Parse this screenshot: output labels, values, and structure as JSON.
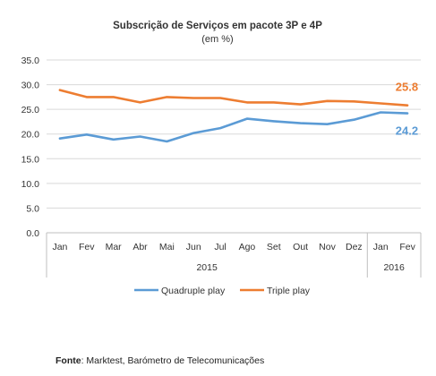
{
  "chart_data": {
    "type": "line",
    "title": "Subscrição de Serviços em pacote 3P e 4P",
    "subtitle": "(em %)",
    "categories": [
      "Jan",
      "Fev",
      "Mar",
      "Abr",
      "Mai",
      "Jun",
      "Jul",
      "Ago",
      "Set",
      "Out",
      "Nov",
      "Dez",
      "Jan",
      "Fev"
    ],
    "category_groups": [
      {
        "label": "2015",
        "count": 12
      },
      {
        "label": "2016",
        "count": 2
      }
    ],
    "series": [
      {
        "name": "Quadruple play",
        "color": "#5B9BD5",
        "values": [
          19.1,
          19.9,
          18.9,
          19.5,
          18.5,
          20.2,
          21.2,
          23.1,
          22.6,
          22.2,
          22.0,
          22.9,
          24.4,
          24.2
        ],
        "end_label": "24.2"
      },
      {
        "name": "Triple play",
        "color": "#ED7D31",
        "values": [
          28.9,
          27.5,
          27.5,
          26.4,
          27.5,
          27.3,
          27.3,
          26.4,
          26.4,
          26.0,
          26.7,
          26.6,
          26.2,
          25.8
        ],
        "end_label": "25.8"
      }
    ],
    "ylim": [
      0,
      35
    ],
    "yticks": [
      "0.0",
      "5.0",
      "10.0",
      "15.0",
      "20.0",
      "25.0",
      "30.0",
      "35.0"
    ],
    "grid": true,
    "legend_position": "bottom"
  },
  "source": {
    "label": "Fonte",
    "text": ": Marktest, Barómetro de Telecomunicações"
  }
}
